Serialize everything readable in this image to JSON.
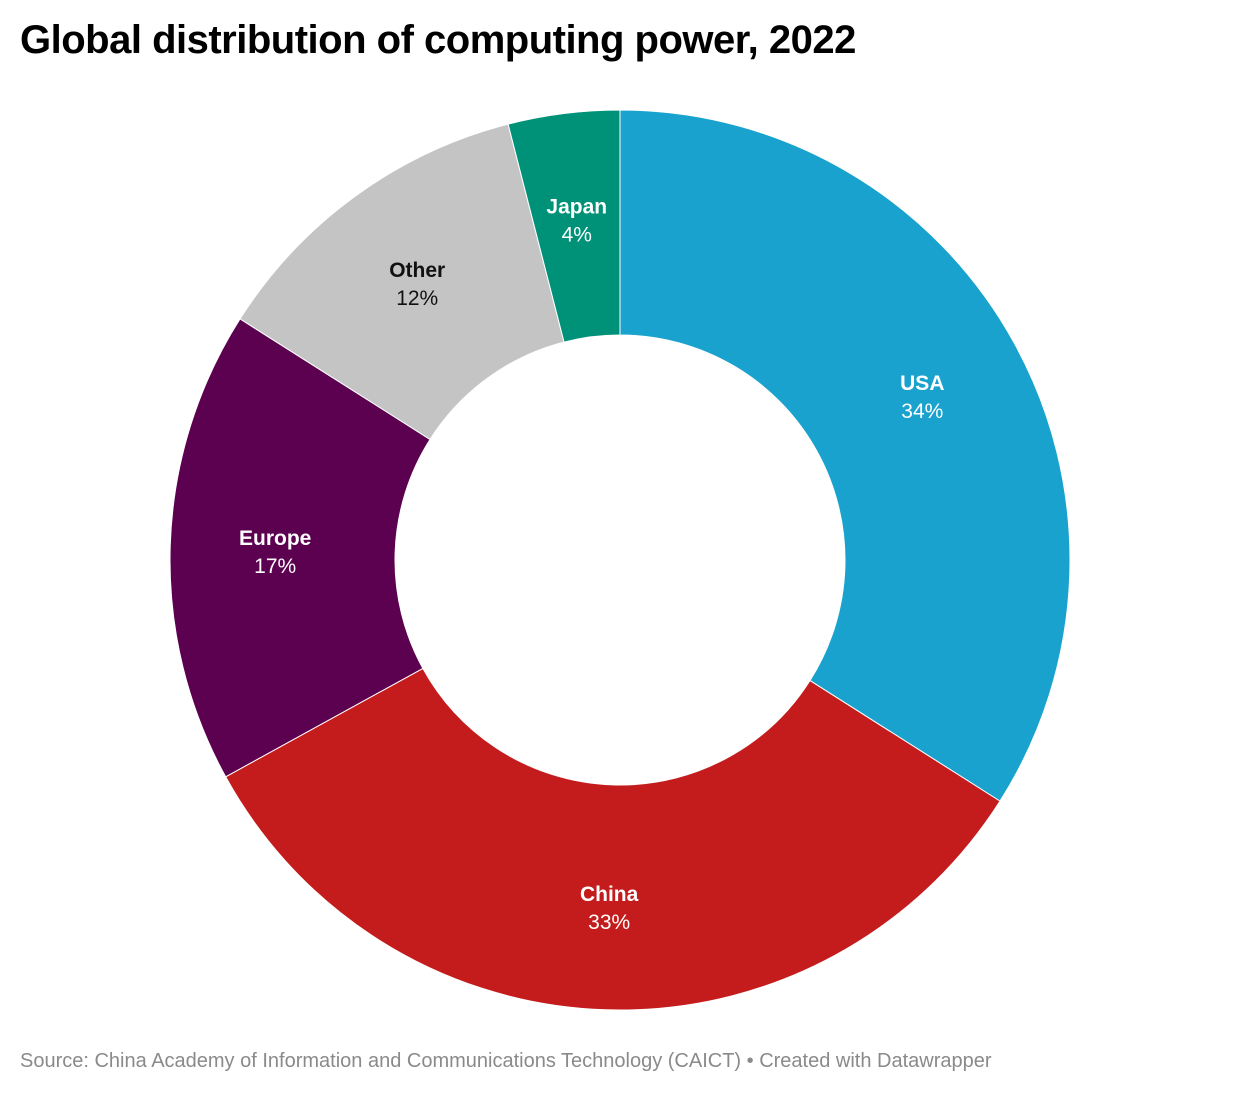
{
  "chart_data": {
    "type": "pie",
    "title": "Global distribution of computing power, 2022",
    "donut": true,
    "slices": [
      {
        "label": "USA",
        "value": 34,
        "display": "34%",
        "color": "#19a2ce",
        "text_color": "#ffffff"
      },
      {
        "label": "China",
        "value": 33,
        "display": "33%",
        "color": "#c41c1c",
        "text_color": "#ffffff"
      },
      {
        "label": "Europe",
        "value": 17,
        "display": "17%",
        "color": "#5c0050",
        "text_color": "#ffffff"
      },
      {
        "label": "Other",
        "value": 12,
        "display": "12%",
        "color": "#c4c4c4",
        "text_color": "#111111"
      },
      {
        "label": "Japan",
        "value": 4,
        "display": "4%",
        "color": "#009278",
        "text_color": "#ffffff"
      }
    ]
  },
  "footer": {
    "source": "Source: China Academy of Information and Communications Technology (CAICT) • Created with Datawrapper"
  }
}
